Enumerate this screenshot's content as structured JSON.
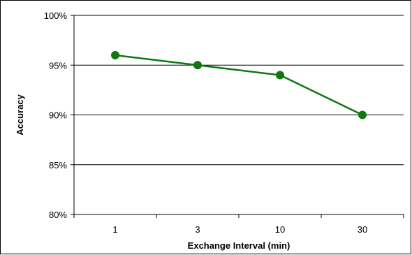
{
  "chart_data": {
    "type": "line",
    "title": "",
    "xlabel": "Exchange Interval (min)",
    "ylabel": "Accuracy",
    "categories": [
      "1",
      "3",
      "10",
      "30"
    ],
    "series": [
      {
        "values": [
          0.96,
          0.95,
          0.94,
          0.9
        ]
      }
    ],
    "ylim": [
      0.8,
      1.0
    ],
    "yticks": [
      0.8,
      0.85,
      0.9,
      0.95,
      1.0
    ],
    "ytick_labels": [
      "80%",
      "85%",
      "90%",
      "95%",
      "100%"
    ],
    "grid": "horizontal",
    "legend": "none",
    "colors": {
      "series": "#117711",
      "grid": "#000000",
      "axis": "#000000"
    }
  }
}
